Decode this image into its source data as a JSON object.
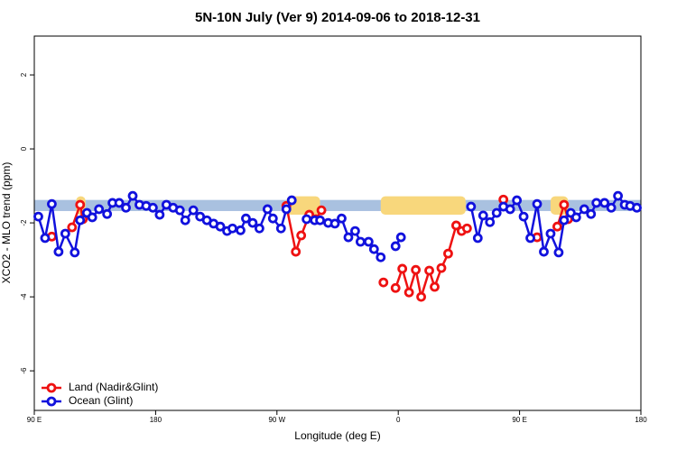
{
  "chart_data": {
    "type": "line",
    "title": "5N-10N July (Ver 9)   2014-09-06 to 2018-12-31",
    "x_label": "Longitude (deg E)",
    "y_label": "XCO2 - MLO trend (ppm)",
    "xlim": [
      90,
      540
    ],
    "ylim": [
      -7.07,
      3.05
    ],
    "xticks": [
      {
        "value": 90,
        "label": "90 E"
      },
      180,
      {
        "value": 270,
        "label": "90 W"
      },
      {
        "value": 360,
        "label": "0"
      },
      {
        "value": 450,
        "label": "90 E"
      },
      {
        "value": 540,
        "label": "180"
      }
    ],
    "yticks": [
      -6,
      -4,
      -2,
      0,
      2
    ],
    "legend": "bottomleft",
    "background_band": {
      "ylim": [
        -1.68,
        -1.38
      ],
      "color": "#a9c1e0",
      "land_color": "#f8d77c",
      "land_spans": [
        [
          121,
          128
        ],
        [
          277,
          302
        ],
        [
          347,
          410
        ],
        [
          473,
          486
        ]
      ]
    },
    "series": [
      {
        "name": "Land (Nadir&Glint)",
        "color": "#ee1111",
        "x": [
          103,
          null,
          118,
          124,
          126,
          null,
          277,
          284,
          288,
          294,
          299,
          303,
          null,
          349,
          null,
          358,
          363,
          368,
          373,
          377,
          383,
          387,
          392,
          397,
          403,
          407,
          411,
          null,
          438,
          null,
          463,
          null,
          478,
          483,
          486
        ],
        "values": [
          -2.37,
          null,
          -2.12,
          -1.51,
          -1.9,
          null,
          -1.54,
          -2.78,
          -2.34,
          -1.78,
          -1.9,
          -1.66,
          null,
          -3.61,
          null,
          -3.76,
          -3.24,
          -3.88,
          -3.27,
          -4.0,
          -3.29,
          -3.73,
          -3.22,
          -2.83,
          -2.07,
          -2.22,
          -2.15,
          null,
          -1.37,
          null,
          -2.39,
          null,
          -2.1,
          -1.51,
          -1.9
        ]
      },
      {
        "name": "Ocean (Glint)",
        "color": "#1111dd",
        "x": [
          93,
          98,
          103,
          108,
          113,
          120,
          124,
          129,
          133,
          138,
          144,
          148,
          153,
          158,
          163,
          168,
          173,
          178,
          183,
          188,
          193,
          198,
          202,
          208,
          213,
          218,
          223,
          228,
          233,
          237,
          243,
          247,
          252,
          257,
          263,
          267,
          273,
          277,
          281,
          null,
          292,
          298,
          302,
          308,
          313,
          318,
          323,
          328,
          332,
          338,
          342,
          347,
          null,
          358,
          362,
          null,
          414,
          419,
          423,
          428,
          433,
          438,
          443,
          448,
          453,
          458,
          463,
          468,
          473,
          479,
          483,
          488,
          492,
          498,
          503,
          507,
          513,
          518,
          523,
          528,
          532,
          537
        ],
        "values": [
          -1.83,
          -2.41,
          -1.49,
          -2.78,
          -2.29,
          -2.8,
          -1.93,
          -1.73,
          -1.85,
          -1.63,
          -1.76,
          -1.46,
          -1.46,
          -1.59,
          -1.27,
          -1.51,
          -1.54,
          -1.59,
          -1.78,
          -1.51,
          -1.59,
          -1.66,
          -1.93,
          -1.66,
          -1.83,
          -1.93,
          -2.02,
          -2.1,
          -2.22,
          -2.15,
          -2.2,
          -1.88,
          -2.0,
          -2.15,
          -1.63,
          -1.88,
          -2.15,
          -1.63,
          -1.39,
          null,
          -1.9,
          -1.93,
          -1.93,
          -2.0,
          -2.02,
          -1.88,
          -2.39,
          -2.22,
          -2.51,
          -2.51,
          -2.71,
          -2.93,
          null,
          -2.63,
          -2.39,
          null,
          -1.56,
          -2.41,
          -1.8,
          -1.98,
          -1.73,
          -1.56,
          -1.63,
          -1.39,
          -1.83,
          -2.41,
          -1.49,
          -2.78,
          -2.29,
          -2.8,
          -1.93,
          -1.73,
          -1.85,
          -1.63,
          -1.76,
          -1.46,
          -1.46,
          -1.59,
          -1.27,
          -1.51,
          -1.54,
          -1.59
        ]
      }
    ]
  }
}
